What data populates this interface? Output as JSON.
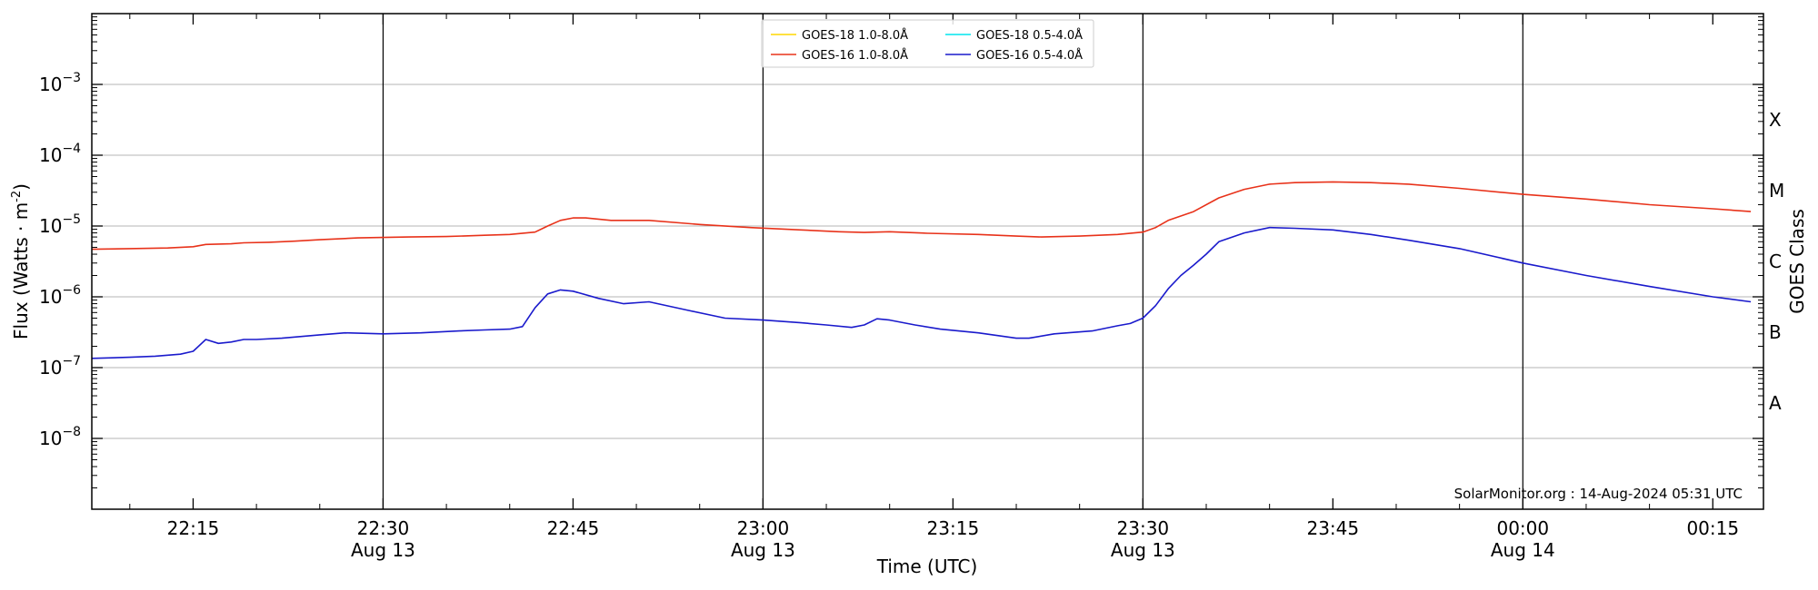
{
  "chart_data": {
    "type": "line",
    "title": "",
    "xlabel": "Time (UTC)",
    "ylabel": "Flux (Watts · m",
    "ylabel_exponent": "-2",
    "ylabel_close": ")",
    "y2label": "GOES Class",
    "y_scale": "log",
    "ylim": [
      1e-09,
      0.01
    ],
    "xlim": [
      "2024-08-13 22:07",
      "2024-08-14 00:19"
    ],
    "grid": "horizontal",
    "legend_position": "top-center",
    "credit": "SolarMonitor.org : 14-Aug-2024 05:31 UTC",
    "y_ticks": [
      {
        "value": 1e-08,
        "base": "10",
        "exp": "−8"
      },
      {
        "value": 1e-07,
        "base": "10",
        "exp": "−7"
      },
      {
        "value": 1e-06,
        "base": "10",
        "exp": "−6"
      },
      {
        "value": 1e-05,
        "base": "10",
        "exp": "−5"
      },
      {
        "value": 0.0001,
        "base": "10",
        "exp": "−4"
      },
      {
        "value": 0.001,
        "base": "10",
        "exp": "−3"
      }
    ],
    "class_labels": [
      {
        "label": "A",
        "value": 3.16e-08
      },
      {
        "label": "B",
        "value": 3.16e-07
      },
      {
        "label": "C",
        "value": 3.16e-06
      },
      {
        "label": "M",
        "value": 3.16e-05
      },
      {
        "label": "X",
        "value": 0.000316
      }
    ],
    "x_ticks": [
      {
        "time": "22:15",
        "label": "22:15",
        "date": ""
      },
      {
        "time": "22:30",
        "label": "22:30",
        "date": "Aug 13"
      },
      {
        "time": "22:45",
        "label": "22:45",
        "date": ""
      },
      {
        "time": "23:00",
        "label": "23:00",
        "date": "Aug 13"
      },
      {
        "time": "23:15",
        "label": "23:15",
        "date": ""
      },
      {
        "time": "23:30",
        "label": "23:30",
        "date": "Aug 13"
      },
      {
        "time": "23:45",
        "label": "23:45",
        "date": ""
      },
      {
        "time": "00:00",
        "label": "00:00",
        "date": "Aug 14"
      },
      {
        "time": "00:15",
        "label": "00:15",
        "date": ""
      }
    ],
    "vertical_lines": [
      "22:30",
      "23:00",
      "23:30",
      "00:00"
    ],
    "series": [
      {
        "name": "GOES-18 1.0-8.0Å",
        "color": "#ffd700",
        "x": [],
        "y": []
      },
      {
        "name": "GOES-16 1.0-8.0Å",
        "color": "#e8321a",
        "x": [
          "22:07",
          "22:10",
          "22:13",
          "22:15",
          "22:16",
          "22:18",
          "22:19",
          "22:21",
          "22:23",
          "22:25",
          "22:28",
          "22:32",
          "22:35",
          "22:38",
          "22:40",
          "22:42",
          "22:43",
          "22:44",
          "22:45",
          "22:46",
          "22:48",
          "22:51",
          "22:55",
          "22:59",
          "23:03",
          "23:06",
          "23:08",
          "23:10",
          "23:13",
          "23:17",
          "23:20",
          "23:22",
          "23:25",
          "23:28",
          "23:30",
          "23:31",
          "23:32",
          "23:34",
          "23:36",
          "23:38",
          "23:40",
          "23:42",
          "23:45",
          "23:48",
          "23:51",
          "23:55",
          "00:00",
          "00:05",
          "00:10",
          "00:15",
          "00:18"
        ],
        "y": [
          4.7e-06,
          4.8e-06,
          4.9e-06,
          5.1e-06,
          5.5e-06,
          5.6e-06,
          5.8e-06,
          5.9e-06,
          6.1e-06,
          6.4e-06,
          6.8e-06,
          7e-06,
          7.1e-06,
          7.4e-06,
          7.6e-06,
          8.2e-06,
          1e-05,
          1.2e-05,
          1.3e-05,
          1.3e-05,
          1.2e-05,
          1.2e-05,
          1.05e-05,
          9.5e-06,
          8.8e-06,
          8.3e-06,
          8.1e-06,
          8.3e-06,
          7.9e-06,
          7.6e-06,
          7.2e-06,
          7e-06,
          7.2e-06,
          7.6e-06,
          8.2e-06,
          9.5e-06,
          1.2e-05,
          1.6e-05,
          2.5e-05,
          3.3e-05,
          3.9e-05,
          4.1e-05,
          4.2e-05,
          4.1e-05,
          3.9e-05,
          3.4e-05,
          2.8e-05,
          2.4e-05,
          2e-05,
          1.75e-05,
          1.6e-05
        ]
      },
      {
        "name": "GOES-18 0.5-4.0Å",
        "color": "#00e5ee",
        "x": [],
        "y": []
      },
      {
        "name": "GOES-16 0.5-4.0Å",
        "color": "#1a1acc",
        "x": [
          "22:07",
          "22:10",
          "22:12",
          "22:14",
          "22:15",
          "22:16",
          "22:17",
          "22:18",
          "22:19",
          "22:20",
          "22:22",
          "22:25",
          "22:27",
          "22:30",
          "22:33",
          "22:36",
          "22:38",
          "22:40",
          "22:41",
          "22:42",
          "22:43",
          "22:44",
          "22:45",
          "22:47",
          "22:49",
          "22:51",
          "22:54",
          "22:57",
          "23:00",
          "23:03",
          "23:05",
          "23:07",
          "23:08",
          "23:09",
          "23:10",
          "23:12",
          "23:14",
          "23:17",
          "23:20",
          "23:21",
          "23:23",
          "23:26",
          "23:28",
          "23:29",
          "23:30",
          "23:31",
          "23:32",
          "23:33",
          "23:34",
          "23:35",
          "23:36",
          "23:38",
          "23:40",
          "23:42",
          "23:45",
          "23:48",
          "23:51",
          "23:55",
          "00:00",
          "00:05",
          "00:10",
          "00:15",
          "00:18"
        ],
        "y": [
          1.35e-07,
          1.4e-07,
          1.45e-07,
          1.55e-07,
          1.7e-07,
          2.5e-07,
          2.2e-07,
          2.3e-07,
          2.5e-07,
          2.5e-07,
          2.6e-07,
          2.9e-07,
          3.1e-07,
          3e-07,
          3.1e-07,
          3.3e-07,
          3.4e-07,
          3.5e-07,
          3.8e-07,
          7e-07,
          1.1e-06,
          1.25e-06,
          1.2e-06,
          9.5e-07,
          8e-07,
          8.5e-07,
          6.5e-07,
          5e-07,
          4.7e-07,
          4.3e-07,
          4e-07,
          3.7e-07,
          4e-07,
          4.9e-07,
          4.7e-07,
          4e-07,
          3.5e-07,
          3.1e-07,
          2.6e-07,
          2.6e-07,
          3e-07,
          3.3e-07,
          3.9e-07,
          4.2e-07,
          5e-07,
          7.5e-07,
          1.3e-06,
          2e-06,
          2.8e-06,
          4e-06,
          6e-06,
          8e-06,
          9.5e-06,
          9.3e-06,
          8.8e-06,
          7.6e-06,
          6.3e-06,
          4.8e-06,
          3e-06,
          2e-06,
          1.4e-06,
          1e-06,
          8.5e-07
        ]
      }
    ]
  }
}
